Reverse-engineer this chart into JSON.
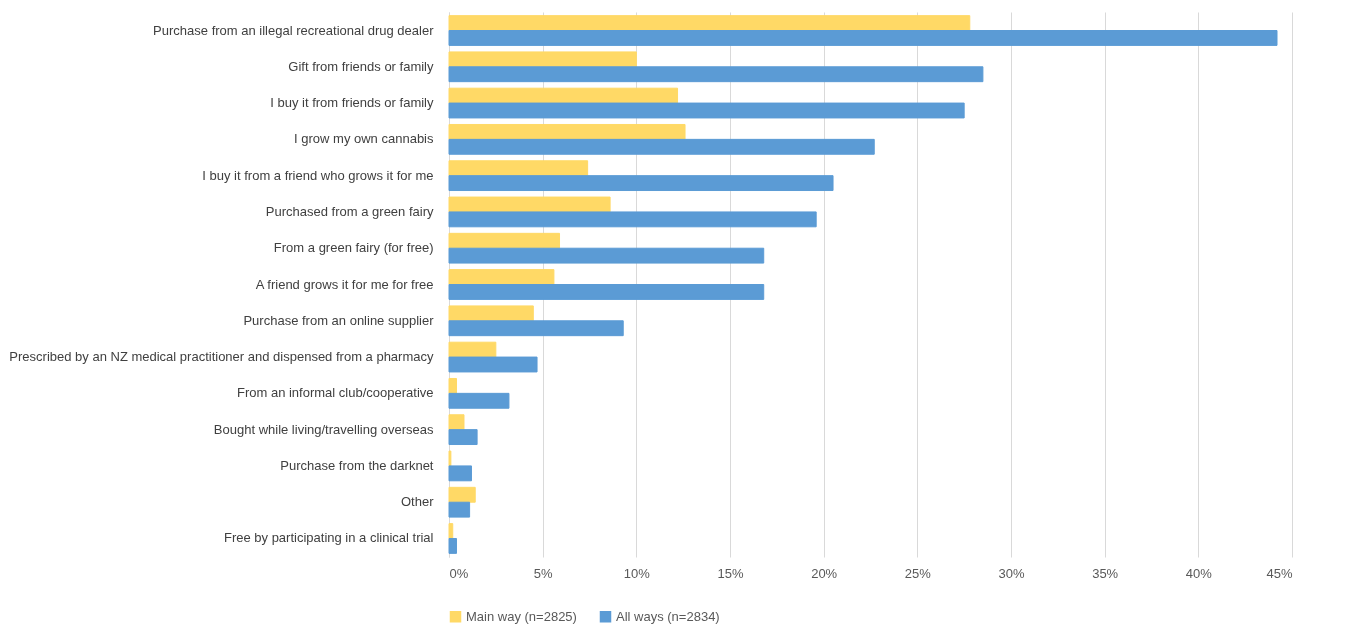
{
  "chart_data": {
    "type": "bar",
    "orientation": "horizontal",
    "categories": [
      "Purchase from an illegal recreational drug dealer",
      "Gift from friends or family",
      "I buy it from friends or family",
      "I grow my own cannabis",
      "I buy it from a friend who grows it for me",
      "Purchased from a green fairy",
      "From a green fairy (for free)",
      "A friend grows it for me for free",
      "Purchase from an online supplier",
      "Prescribed by an NZ medical practitioner and dispensed from a pharmacy",
      "From an informal club/cooperative",
      "Bought while living/travelling overseas",
      "Purchase from the darknet",
      "Other",
      "Free by participating in a clinical trial"
    ],
    "series": [
      {
        "name": "Main way (n=2825)",
        "color": "#ffd966",
        "values": [
          27.8,
          10.0,
          12.2,
          12.6,
          7.4,
          8.6,
          5.9,
          5.6,
          4.5,
          2.5,
          0.4,
          0.8,
          0.1,
          1.4,
          0.2
        ]
      },
      {
        "name": "All ways (n=2834)",
        "color": "#5b9bd5",
        "values": [
          44.2,
          28.5,
          27.5,
          22.7,
          20.5,
          19.6,
          16.8,
          16.8,
          9.3,
          4.7,
          3.2,
          1.5,
          1.2,
          1.1,
          0.4
        ]
      }
    ],
    "xlim": [
      0,
      45
    ],
    "xticks": [
      {
        "value": 0,
        "label": "0%"
      },
      {
        "value": 5,
        "label": "5%"
      },
      {
        "value": 10,
        "label": "10%"
      },
      {
        "value": 15,
        "label": "15%"
      },
      {
        "value": 20,
        "label": "20%"
      },
      {
        "value": 25,
        "label": "25%"
      },
      {
        "value": 30,
        "label": "30%"
      },
      {
        "value": 35,
        "label": "35%"
      },
      {
        "value": 40,
        "label": "40%"
      },
      {
        "value": 45,
        "label": "45%"
      }
    ],
    "grid": "x",
    "legend": "bottom"
  }
}
